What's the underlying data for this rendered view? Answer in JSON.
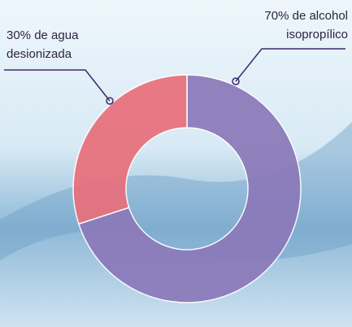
{
  "chart_data": {
    "type": "donut",
    "series": [
      {
        "values": [
          70,
          30
        ],
        "value_labels": [
          "70% de alcohol isopropílico",
          "30% de agua desionizada"
        ],
        "colors": [
          "#8b79b9",
          "#e86f7b"
        ]
      }
    ]
  }
}
